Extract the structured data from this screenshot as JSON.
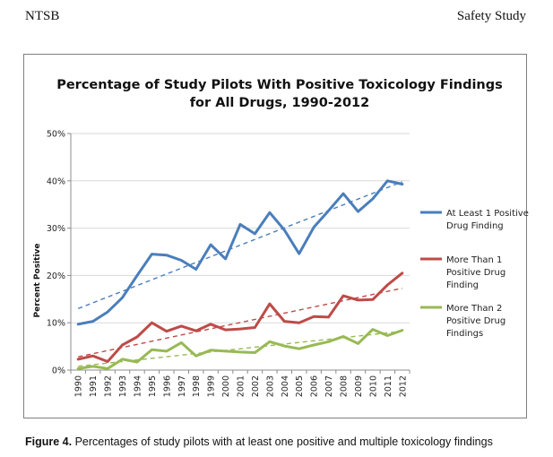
{
  "header": {
    "left": "NTSB",
    "right": "Safety Study"
  },
  "caption": {
    "label": "Figure 4.",
    "text": "Percentages of study pilots with at least one positive and multiple toxicology findings"
  },
  "chart_data": {
    "type": "line",
    "title": [
      "Percentage of Study Pilots With Positive Toxicology Findings",
      "for All Drugs, 1990-2012"
    ],
    "xlabel": "",
    "ylabel": "Percent Positive",
    "ylim": [
      0,
      50
    ],
    "yticks": [
      0,
      10,
      20,
      30,
      40,
      50
    ],
    "ytick_labels": [
      "0%",
      "10%",
      "20%",
      "30%",
      "40%",
      "50%"
    ],
    "categories": [
      "1990",
      "1991",
      "1992",
      "1993",
      "1994",
      "1995",
      "1996",
      "1997",
      "1998",
      "1999",
      "2000",
      "2001",
      "2002",
      "2003",
      "2004",
      "2005",
      "2006",
      "2007",
      "2008",
      "2009",
      "2010",
      "2011",
      "2012"
    ],
    "grid": "horizontal",
    "legend_position": "right",
    "series": [
      {
        "name": "At Least 1 Positive Drug Finding",
        "legend_lines": [
          "At Least 1 Positive",
          "Drug Finding"
        ],
        "color": "#4a7ebb",
        "values": [
          9.7,
          10.3,
          12.3,
          15.3,
          20.0,
          24.5,
          24.3,
          23.2,
          21.3,
          26.5,
          23.5,
          30.8,
          28.8,
          33.3,
          29.6,
          24.6,
          30.2,
          33.7,
          37.3,
          33.5,
          36.2,
          40.0,
          39.3
        ],
        "trend": [
          13.0,
          39.8
        ]
      },
      {
        "name": "More Than 1 Positive Drug Finding",
        "legend_lines": [
          "More Than 1",
          "Positive Drug",
          "Finding"
        ],
        "color": "#be4b48",
        "values": [
          2.3,
          3.0,
          1.8,
          5.3,
          7.0,
          10.0,
          8.2,
          9.3,
          8.3,
          9.7,
          8.5,
          8.7,
          9.0,
          14.0,
          10.3,
          10.0,
          11.3,
          11.2,
          15.7,
          14.8,
          14.9,
          18.0,
          20.5
        ],
        "trend": [
          2.8,
          17.3
        ]
      },
      {
        "name": "More Than 2 Positive Drug Findings",
        "legend_lines": [
          "More Than 2",
          "Positive Drug",
          "Findings"
        ],
        "color": "#98b954",
        "values": [
          0.3,
          0.8,
          0.3,
          2.3,
          1.7,
          4.3,
          4.0,
          5.8,
          3.0,
          4.2,
          4.0,
          3.8,
          3.7,
          6.0,
          5.1,
          4.5,
          5.3,
          6.0,
          7.1,
          5.6,
          8.6,
          7.3,
          8.4
        ],
        "trend": [
          0.8,
          8.2
        ]
      }
    ]
  }
}
